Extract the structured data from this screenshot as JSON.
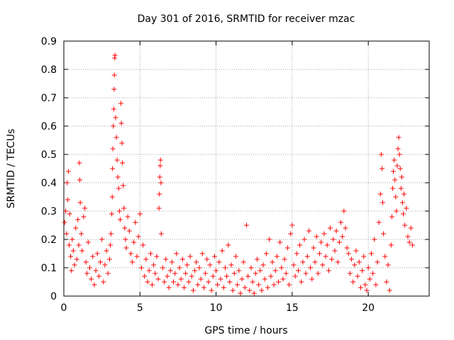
{
  "chart_data": {
    "type": "scatter",
    "title": "Day 301 of 2016, SRMTID for receiver mzac",
    "xlabel": "GPS time / hours",
    "ylabel": "SRMTID / TECUs",
    "xlim": [
      0,
      24
    ],
    "ylim": [
      0,
      0.9
    ],
    "xticks": [
      "0",
      "5",
      "10",
      "15",
      "20"
    ],
    "yticks": [
      "0",
      "0.1",
      "0.2",
      "0.3",
      "0.4",
      "0.5",
      "0.6",
      "0.7",
      "0.8",
      "0.9"
    ],
    "grid": true,
    "marker": "+",
    "color": "#ff0000",
    "series": [
      {
        "points": [
          [
            0.05,
            0.26
          ],
          [
            0.12,
            0.3
          ],
          [
            0.18,
            0.22
          ],
          [
            0.22,
            0.4
          ],
          [
            0.25,
            0.34
          ],
          [
            0.3,
            0.44
          ],
          [
            0.35,
            0.18
          ],
          [
            0.38,
            0.29
          ],
          [
            0.45,
            0.14
          ],
          [
            0.5,
            0.09
          ],
          [
            0.55,
            0.2
          ],
          [
            0.62,
            0.16
          ],
          [
            0.7,
            0.11
          ],
          [
            0.78,
            0.24
          ],
          [
            0.85,
            0.13
          ],
          [
            0.92,
            0.27
          ],
          [
            0.98,
            0.18
          ],
          [
            1.02,
            0.47
          ],
          [
            1.05,
            0.41
          ],
          [
            1.08,
            0.33
          ],
          [
            1.15,
            0.22
          ],
          [
            1.2,
            0.16
          ],
          [
            1.3,
            0.28
          ],
          [
            1.38,
            0.31
          ],
          [
            1.45,
            0.12
          ],
          [
            1.52,
            0.08
          ],
          [
            1.6,
            0.19
          ],
          [
            1.7,
            0.1
          ],
          [
            1.8,
            0.06
          ],
          [
            1.9,
            0.14
          ],
          [
            2.0,
            0.04
          ],
          [
            2.1,
            0.09
          ],
          [
            2.2,
            0.15
          ],
          [
            2.3,
            0.07
          ],
          [
            2.4,
            0.12
          ],
          [
            2.5,
            0.2
          ],
          [
            2.6,
            0.05
          ],
          [
            2.7,
            0.11
          ],
          [
            2.8,
            0.16
          ],
          [
            2.9,
            0.08
          ],
          [
            3.0,
            0.13
          ],
          [
            3.05,
            0.18
          ],
          [
            3.1,
            0.22
          ],
          [
            3.15,
            0.29
          ],
          [
            3.18,
            0.35
          ],
          [
            3.2,
            0.45
          ],
          [
            3.22,
            0.52
          ],
          [
            3.25,
            0.6
          ],
          [
            3.28,
            0.66
          ],
          [
            3.3,
            0.73
          ],
          [
            3.32,
            0.78
          ],
          [
            3.34,
            0.84
          ],
          [
            3.36,
            0.85
          ],
          [
            3.4,
            0.63
          ],
          [
            3.45,
            0.56
          ],
          [
            3.5,
            0.48
          ],
          [
            3.55,
            0.42
          ],
          [
            3.6,
            0.38
          ],
          [
            3.65,
            0.3
          ],
          [
            3.7,
            0.27
          ],
          [
            3.75,
            0.68
          ],
          [
            3.78,
            0.61
          ],
          [
            3.82,
            0.54
          ],
          [
            3.85,
            0.47
          ],
          [
            3.9,
            0.39
          ],
          [
            3.95,
            0.31
          ],
          [
            4.0,
            0.24
          ],
          [
            4.05,
            0.2
          ],
          [
            4.1,
            0.17
          ],
          [
            4.2,
            0.28
          ],
          [
            4.3,
            0.23
          ],
          [
            4.4,
            0.15
          ],
          [
            4.5,
            0.12
          ],
          [
            4.6,
            0.19
          ],
          [
            4.7,
            0.26
          ],
          [
            4.8,
            0.14
          ],
          [
            4.9,
            0.21
          ],
          [
            5.0,
            0.29
          ],
          [
            5.1,
            0.1
          ],
          [
            5.2,
            0.18
          ],
          [
            5.3,
            0.07
          ],
          [
            5.4,
            0.13
          ],
          [
            5.5,
            0.05
          ],
          [
            5.6,
            0.09
          ],
          [
            5.7,
            0.15
          ],
          [
            5.8,
            0.04
          ],
          [
            5.9,
            0.11
          ],
          [
            6.0,
            0.08
          ],
          [
            6.1,
            0.14
          ],
          [
            6.2,
            0.06
          ],
          [
            6.25,
            0.31
          ],
          [
            6.28,
            0.36
          ],
          [
            6.3,
            0.42
          ],
          [
            6.33,
            0.46
          ],
          [
            6.35,
            0.48
          ],
          [
            6.38,
            0.4
          ],
          [
            6.4,
            0.22
          ],
          [
            6.5,
            0.1
          ],
          [
            6.6,
            0.05
          ],
          [
            6.7,
            0.13
          ],
          [
            6.8,
            0.07
          ],
          [
            6.9,
            0.03
          ],
          [
            7.0,
            0.09
          ],
          [
            7.1,
            0.12
          ],
          [
            7.2,
            0.05
          ],
          [
            7.3,
            0.08
          ],
          [
            7.4,
            0.15
          ],
          [
            7.5,
            0.04
          ],
          [
            7.6,
            0.1
          ],
          [
            7.7,
            0.06
          ],
          [
            7.8,
            0.13
          ],
          [
            7.9,
            0.03
          ],
          [
            8.0,
            0.08
          ],
          [
            8.1,
            0.11
          ],
          [
            8.2,
            0.05
          ],
          [
            8.3,
            0.14
          ],
          [
            8.4,
            0.07
          ],
          [
            8.5,
            0.02
          ],
          [
            8.6,
            0.09
          ],
          [
            8.7,
            0.12
          ],
          [
            8.8,
            0.04
          ],
          [
            8.9,
            0.1
          ],
          [
            9.0,
            0.06
          ],
          [
            9.1,
            0.15
          ],
          [
            9.2,
            0.03
          ],
          [
            9.3,
            0.08
          ],
          [
            9.4,
            0.13
          ],
          [
            9.5,
            0.05
          ],
          [
            9.6,
            0.11
          ],
          [
            9.7,
            0.02
          ],
          [
            9.8,
            0.07
          ],
          [
            9.9,
            0.14
          ],
          [
            10.0,
            0.09
          ],
          [
            10.1,
            0.04
          ],
          [
            10.2,
            0.12
          ],
          [
            10.3,
            0.06
          ],
          [
            10.4,
            0.16
          ],
          [
            10.5,
            0.03
          ],
          [
            10.6,
            0.1
          ],
          [
            10.7,
            0.07
          ],
          [
            10.8,
            0.18
          ],
          [
            10.9,
            0.05
          ],
          [
            11.0,
            0.11
          ],
          [
            11.1,
            0.02
          ],
          [
            11.2,
            0.08
          ],
          [
            11.3,
            0.14
          ],
          [
            11.4,
            0.04
          ],
          [
            11.5,
            0.09
          ],
          [
            11.6,
            0.01
          ],
          [
            11.7,
            0.06
          ],
          [
            11.8,
            0.12
          ],
          [
            11.9,
            0.03
          ],
          [
            12.0,
            0.25
          ],
          [
            12.1,
            0.07
          ],
          [
            12.2,
            0.02
          ],
          [
            12.3,
            0.1
          ],
          [
            12.4,
            0.05
          ],
          [
            12.5,
            0.01
          ],
          [
            12.6,
            0.08
          ],
          [
            12.7,
            0.13
          ],
          [
            12.8,
            0.04
          ],
          [
            12.9,
            0.09
          ],
          [
            13.0,
            0.02
          ],
          [
            13.1,
            0.11
          ],
          [
            13.2,
            0.06
          ],
          [
            13.3,
            0.15
          ],
          [
            13.4,
            0.03
          ],
          [
            13.5,
            0.2
          ],
          [
            13.6,
            0.07
          ],
          [
            13.7,
            0.12
          ],
          [
            13.8,
            0.04
          ],
          [
            13.9,
            0.09
          ],
          [
            14.0,
            0.14
          ],
          [
            14.1,
            0.05
          ],
          [
            14.2,
            0.19
          ],
          [
            14.3,
            0.1
          ],
          [
            14.4,
            0.06
          ],
          [
            14.5,
            0.13
          ],
          [
            14.6,
            0.08
          ],
          [
            14.7,
            0.17
          ],
          [
            14.8,
            0.04
          ],
          [
            14.9,
            0.22
          ],
          [
            15.0,
            0.25
          ],
          [
            15.1,
            0.11
          ],
          [
            15.2,
            0.07
          ],
          [
            15.3,
            0.15
          ],
          [
            15.4,
            0.09
          ],
          [
            15.5,
            0.18
          ],
          [
            15.6,
            0.05
          ],
          [
            15.7,
            0.12
          ],
          [
            15.8,
            0.2
          ],
          [
            15.9,
            0.08
          ],
          [
            16.0,
            0.14
          ],
          [
            16.1,
            0.23
          ],
          [
            16.2,
            0.1
          ],
          [
            16.3,
            0.06
          ],
          [
            16.4,
            0.17
          ],
          [
            16.5,
            0.12
          ],
          [
            16.6,
            0.21
          ],
          [
            16.7,
            0.08
          ],
          [
            16.8,
            0.15
          ],
          [
            16.9,
            0.19
          ],
          [
            17.0,
            0.11
          ],
          [
            17.1,
            0.22
          ],
          [
            17.2,
            0.14
          ],
          [
            17.3,
            0.18
          ],
          [
            17.4,
            0.09
          ],
          [
            17.5,
            0.24
          ],
          [
            17.6,
            0.13
          ],
          [
            17.7,
            0.2
          ],
          [
            17.8,
            0.16
          ],
          [
            17.9,
            0.23
          ],
          [
            18.0,
            0.12
          ],
          [
            18.1,
            0.19
          ],
          [
            18.2,
            0.26
          ],
          [
            18.3,
            0.21
          ],
          [
            18.4,
            0.3
          ],
          [
            18.5,
            0.24
          ],
          [
            18.6,
            0.17
          ],
          [
            18.7,
            0.15
          ],
          [
            18.8,
            0.08
          ],
          [
            18.9,
            0.13
          ],
          [
            19.0,
            0.05
          ],
          [
            19.1,
            0.11
          ],
          [
            19.2,
            0.16
          ],
          [
            19.3,
            0.07
          ],
          [
            19.4,
            0.12
          ],
          [
            19.5,
            0.03
          ],
          [
            19.6,
            0.09
          ],
          [
            19.7,
            0.14
          ],
          [
            19.8,
            0.04
          ],
          [
            19.9,
            0.02
          ],
          [
            20.0,
            0.1
          ],
          [
            20.1,
            0.06
          ],
          [
            20.2,
            0.15
          ],
          [
            20.3,
            0.08
          ],
          [
            20.4,
            0.2
          ],
          [
            20.5,
            0.04
          ],
          [
            20.6,
            0.12
          ],
          [
            20.7,
            0.26
          ],
          [
            20.8,
            0.36
          ],
          [
            20.85,
            0.5
          ],
          [
            20.9,
            0.45
          ],
          [
            20.95,
            0.33
          ],
          [
            21.0,
            0.22
          ],
          [
            21.1,
            0.14
          ],
          [
            21.2,
            0.05
          ],
          [
            21.3,
            0.11
          ],
          [
            21.4,
            0.02
          ],
          [
            21.5,
            0.18
          ],
          [
            21.55,
            0.28
          ],
          [
            21.6,
            0.38
          ],
          [
            21.65,
            0.44
          ],
          [
            21.7,
            0.48
          ],
          [
            21.75,
            0.41
          ],
          [
            21.8,
            0.35
          ],
          [
            21.85,
            0.3
          ],
          [
            21.9,
            0.46
          ],
          [
            21.95,
            0.52
          ],
          [
            22.0,
            0.56
          ],
          [
            22.05,
            0.5
          ],
          [
            22.1,
            0.45
          ],
          [
            22.15,
            0.38
          ],
          [
            22.2,
            0.42
          ],
          [
            22.25,
            0.33
          ],
          [
            22.3,
            0.29
          ],
          [
            22.35,
            0.36
          ],
          [
            22.4,
            0.25
          ],
          [
            22.5,
            0.31
          ],
          [
            22.6,
            0.21
          ],
          [
            22.7,
            0.19
          ],
          [
            22.8,
            0.24
          ],
          [
            22.9,
            0.18
          ]
        ]
      }
    ]
  }
}
